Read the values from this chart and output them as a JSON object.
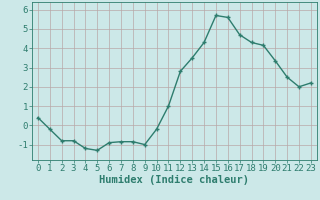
{
  "x": [
    0,
    1,
    2,
    3,
    4,
    5,
    6,
    7,
    8,
    9,
    10,
    11,
    12,
    13,
    14,
    15,
    16,
    17,
    18,
    19,
    20,
    21,
    22,
    23
  ],
  "y": [
    0.4,
    -0.2,
    -0.8,
    -0.8,
    -1.2,
    -1.3,
    -0.9,
    -0.85,
    -0.85,
    -1.0,
    -0.2,
    1.0,
    2.8,
    3.5,
    4.3,
    5.7,
    5.6,
    4.7,
    4.3,
    4.15,
    3.35,
    2.5,
    2.0,
    2.2
  ],
  "line_color": "#2e7d6e",
  "marker": "+",
  "bg_color": "#cce8e8",
  "grid_color": "#b8a8a8",
  "xlabel": "Humidex (Indice chaleur)",
  "ylim": [
    -1.8,
    6.4
  ],
  "xlim": [
    -0.5,
    23.5
  ],
  "yticks": [
    -1,
    0,
    1,
    2,
    3,
    4,
    5,
    6
  ],
  "xticks": [
    0,
    1,
    2,
    3,
    4,
    5,
    6,
    7,
    8,
    9,
    10,
    11,
    12,
    13,
    14,
    15,
    16,
    17,
    18,
    19,
    20,
    21,
    22,
    23
  ],
  "tick_label_fontsize": 6.5,
  "xlabel_fontsize": 7.5,
  "line_width": 1.0,
  "marker_size": 3.5,
  "marker_edge_width": 1.0
}
